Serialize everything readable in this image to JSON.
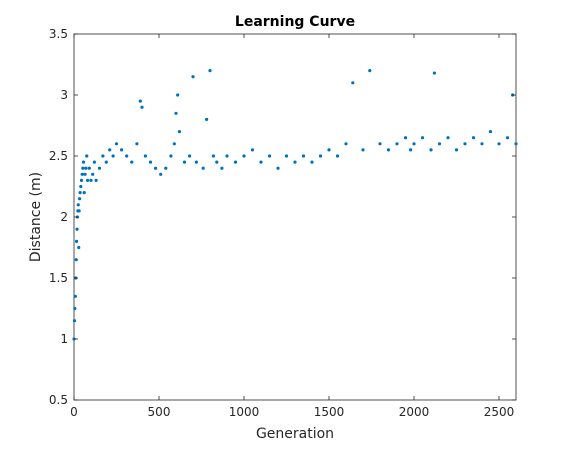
{
  "chart_data": {
    "type": "scatter",
    "title": "Learning Curve",
    "xlabel": "Generation",
    "ylabel": "Distance (m)",
    "xlim": [
      0,
      2600
    ],
    "ylim": [
      0.5,
      3.5
    ],
    "xticks": [
      0,
      500,
      1000,
      1500,
      2000,
      2500
    ],
    "yticks": [
      0.5,
      1,
      1.5,
      2,
      2.5,
      3,
      3.5
    ],
    "xtick_labels": [
      "0",
      "500",
      "1000",
      "1500",
      "2000",
      "2500"
    ],
    "ytick_labels": [
      "0.5",
      "1",
      "1.5",
      "2",
      "2.5",
      "3",
      "3.5"
    ],
    "grid": false,
    "marker_color": "#0072BD",
    "series": [
      {
        "x": [
          0,
          3,
          5,
          8,
          10,
          13,
          15,
          18,
          20,
          23,
          25,
          28,
          30,
          33,
          36,
          40,
          44,
          48,
          52,
          56,
          60,
          65,
          70,
          75,
          80,
          90,
          100,
          110,
          120,
          130,
          150,
          170,
          190,
          210,
          230,
          250,
          280,
          310,
          340,
          370,
          390,
          400,
          420,
          450,
          480,
          510,
          540,
          570,
          590,
          600,
          610,
          620,
          650,
          680,
          700,
          720,
          760,
          780,
          800,
          820,
          840,
          870,
          900,
          950,
          1000,
          1050,
          1100,
          1150,
          1200,
          1250,
          1300,
          1350,
          1400,
          1450,
          1500,
          1550,
          1600,
          1640,
          1700,
          1740,
          1800,
          1850,
          1900,
          1950,
          1980,
          2000,
          2050,
          2100,
          2120,
          2150,
          2200,
          2250,
          2300,
          2350,
          2400,
          2450,
          2500,
          2550,
          2580,
          2600
        ],
        "y": [
          1.0,
          1.15,
          1.25,
          1.35,
          1.5,
          1.65,
          1.8,
          1.9,
          2.0,
          2.05,
          2.1,
          1.75,
          2.05,
          2.15,
          2.2,
          2.25,
          2.3,
          2.35,
          2.4,
          2.45,
          2.2,
          2.35,
          2.4,
          2.5,
          2.3,
          2.4,
          2.3,
          2.35,
          2.45,
          2.3,
          2.4,
          2.5,
          2.45,
          2.55,
          2.5,
          2.6,
          2.55,
          2.5,
          2.45,
          2.6,
          2.95,
          2.9,
          2.5,
          2.45,
          2.4,
          2.35,
          2.4,
          2.5,
          2.6,
          2.85,
          3.0,
          2.7,
          2.45,
          2.5,
          3.15,
          2.45,
          2.4,
          2.8,
          3.2,
          2.5,
          2.45,
          2.4,
          2.5,
          2.45,
          2.5,
          2.55,
          2.45,
          2.5,
          2.4,
          2.5,
          2.45,
          2.5,
          2.45,
          2.5,
          2.55,
          2.5,
          2.6,
          3.1,
          2.55,
          3.2,
          2.6,
          2.55,
          2.6,
          2.65,
          2.55,
          2.6,
          2.65,
          2.55,
          3.18,
          2.6,
          2.65,
          2.55,
          2.6,
          2.65,
          2.6,
          2.7,
          2.6,
          2.65,
          3.0,
          2.6
        ]
      }
    ]
  }
}
